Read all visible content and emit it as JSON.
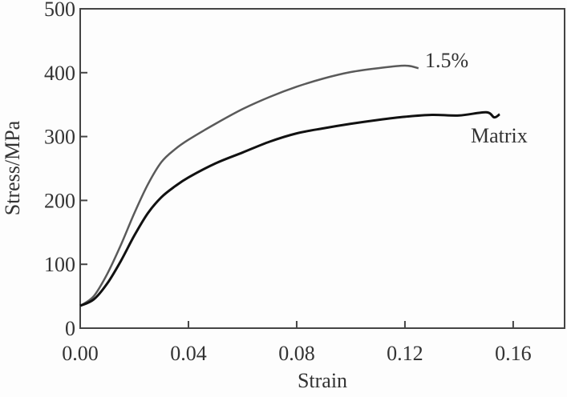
{
  "chart_data": {
    "type": "line",
    "title": "",
    "xlabel": "Strain",
    "ylabel": "Stress/MPa",
    "xlim": [
      0,
      0.179
    ],
    "ylim": [
      0,
      500
    ],
    "xticks": [
      "0.00",
      "0.04",
      "0.08",
      "0.12",
      "0.16"
    ],
    "xtick_values": [
      0,
      0.04,
      0.08,
      0.12,
      0.16
    ],
    "yticks": [
      "0",
      "100",
      "200",
      "300",
      "400",
      "500"
    ],
    "ytick_values": [
      0,
      100,
      200,
      300,
      400,
      500
    ],
    "grid": false,
    "series": [
      {
        "name": "1.5%",
        "color": "#5a5a5a",
        "x": [
          0,
          0.005,
          0.01,
          0.015,
          0.02,
          0.025,
          0.03,
          0.035,
          0.04,
          0.05,
          0.06,
          0.07,
          0.08,
          0.09,
          0.1,
          0.11,
          0.12,
          0.125
        ],
        "y": [
          35,
          50,
          85,
          130,
          180,
          225,
          260,
          280,
          295,
          320,
          343,
          362,
          378,
          391,
          401,
          407,
          411,
          407
        ]
      },
      {
        "name": "Matrix",
        "color": "#111111",
        "x": [
          0,
          0.005,
          0.01,
          0.015,
          0.02,
          0.025,
          0.03,
          0.035,
          0.04,
          0.05,
          0.06,
          0.07,
          0.08,
          0.09,
          0.1,
          0.11,
          0.12,
          0.13,
          0.14,
          0.15,
          0.153,
          0.155
        ],
        "y": [
          35,
          45,
          70,
          105,
          145,
          180,
          205,
          222,
          236,
          258,
          275,
          292,
          305,
          313,
          320,
          326,
          331,
          334,
          333,
          338,
          330,
          335
        ]
      }
    ]
  }
}
